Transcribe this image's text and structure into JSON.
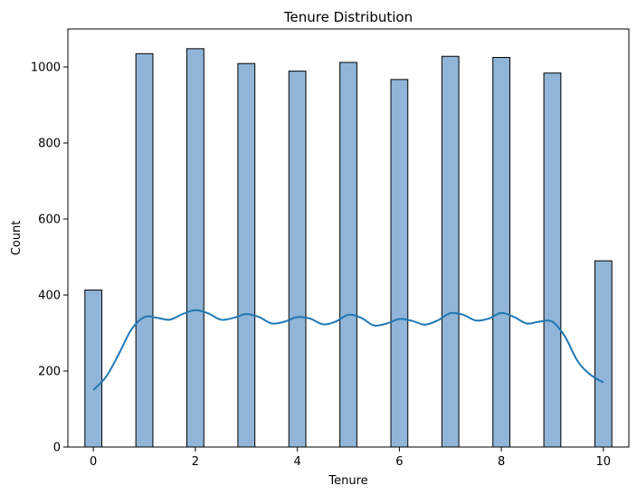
{
  "chart_data": {
    "type": "bar",
    "title": "Tenure Distribution",
    "xlabel": "Tenure",
    "ylabel": "Count",
    "xlim": [
      -0.5,
      10.5
    ],
    "ylim": [
      0,
      1100
    ],
    "xticks": [
      0,
      2,
      4,
      6,
      8,
      10
    ],
    "yticks": [
      0,
      200,
      400,
      600,
      800,
      1000
    ],
    "bins": [
      {
        "x": 0,
        "count": 413
      },
      {
        "x": 1,
        "count": 1035
      },
      {
        "x": 2,
        "count": 1048
      },
      {
        "x": 3,
        "count": 1009
      },
      {
        "x": 4,
        "count": 989
      },
      {
        "x": 5,
        "count": 1012
      },
      {
        "x": 6,
        "count": 967
      },
      {
        "x": 7,
        "count": 1028
      },
      {
        "x": 8,
        "count": 1025
      },
      {
        "x": 9,
        "count": 984
      },
      {
        "x": 10,
        "count": 490
      }
    ],
    "bin_width": 0.333,
    "kde": {
      "x": [
        0,
        0.25,
        0.5,
        0.75,
        1,
        1.25,
        1.5,
        1.75,
        2,
        2.25,
        2.5,
        2.75,
        3,
        3.25,
        3.5,
        3.75,
        4,
        4.25,
        4.5,
        4.75,
        5,
        5.25,
        5.5,
        5.75,
        6,
        6.25,
        6.5,
        6.75,
        7,
        7.25,
        7.5,
        7.75,
        8,
        8.25,
        8.5,
        8.75,
        9,
        9.25,
        9.5,
        9.75,
        10
      ],
      "y": [
        150,
        185,
        245,
        310,
        342,
        340,
        335,
        350,
        360,
        352,
        335,
        340,
        350,
        342,
        325,
        330,
        342,
        338,
        323,
        330,
        348,
        340,
        320,
        325,
        337,
        332,
        322,
        333,
        352,
        348,
        333,
        338,
        353,
        342,
        325,
        330,
        330,
        290,
        225,
        190,
        170
      ]
    },
    "colors": {
      "bar_fill": "#90b5d8",
      "bar_edge": "#000000",
      "kde_line": "#1f77b4"
    },
    "grid": false,
    "legend": "none"
  }
}
